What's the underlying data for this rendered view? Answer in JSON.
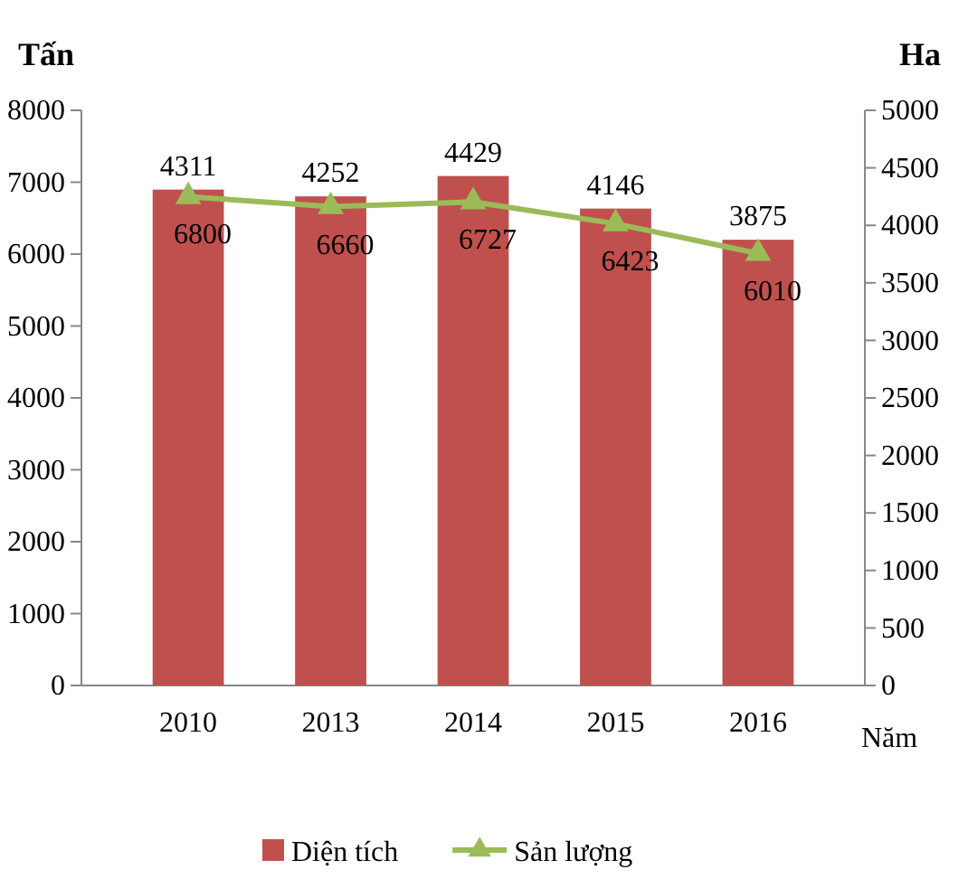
{
  "chart_data": {
    "type": "bar",
    "ylabel": "Tấn",
    "y2label": "Ha",
    "xlabel": "Năm",
    "categories": [
      "2010",
      "2013",
      "2014",
      "2015",
      "2016"
    ],
    "series": [
      {
        "name": "Diện tích",
        "axis": "y2",
        "color": "#c0504d",
        "values": [
          4311,
          4252,
          4429,
          4146,
          3875
        ]
      },
      {
        "name": "Sản lượng",
        "type": "line",
        "axis": "y",
        "color": "#9bbb59",
        "marker": "triangle",
        "values": [
          6800,
          6660,
          6727,
          6423,
          6010
        ]
      }
    ],
    "ylim": [
      0,
      8000
    ],
    "yticks": [
      0,
      1000,
      2000,
      3000,
      4000,
      5000,
      6000,
      7000,
      8000
    ],
    "y2lim": [
      0,
      5000
    ],
    "y2ticks": [
      0,
      500,
      1000,
      1500,
      2000,
      2500,
      3000,
      3500,
      4000,
      4500,
      5000
    ],
    "data_labels": true,
    "grid": false,
    "legend": "bottom"
  }
}
